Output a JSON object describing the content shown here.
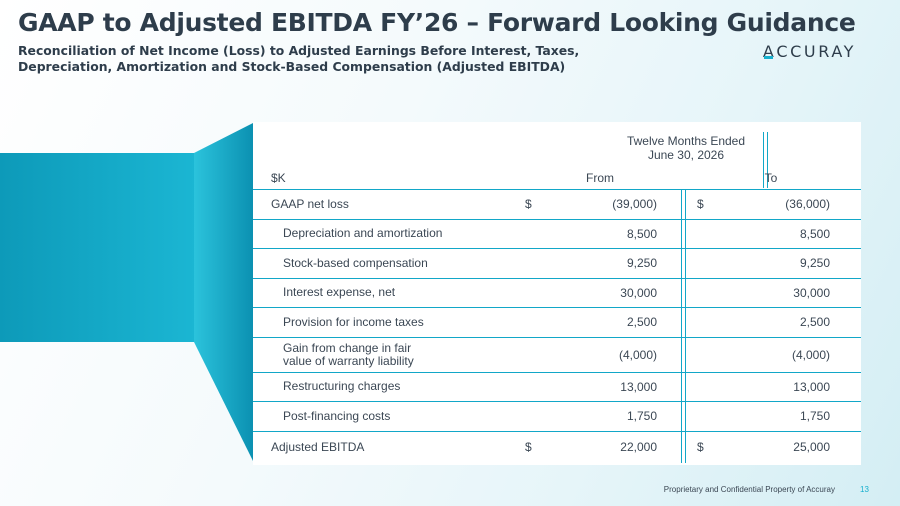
{
  "title": "GAAP to Adjusted EBITDA FY’26 – Forward Looking Guidance",
  "subtitle_line1": "Reconciliation of Net Income (Loss) to Adjusted Earnings Before Interest, Taxes,",
  "subtitle_line2": "Depreciation, Amortization and Stock-Based Compensation (Adjusted EBITDA)",
  "logo": {
    "first_letter": "A",
    "rest": "CCURAY"
  },
  "colors": {
    "accent": "#17b0ce",
    "text": "#2e3d4b"
  },
  "table": {
    "header": {
      "period_line1": "Twelve Months Ended",
      "period_line2": "June 30, 2026",
      "unit_label": "$K",
      "col_from": "From",
      "col_to": "To"
    },
    "rows": [
      {
        "label": "GAAP net loss",
        "cur_from": "$",
        "from": "(39,000)",
        "cur_to": "$",
        "to": "(36,000)"
      },
      {
        "label": "Depreciation and amortization",
        "from": "8,500",
        "to": "8,500"
      },
      {
        "label": "Stock-based compensation",
        "from": "9,250",
        "to": "9,250"
      },
      {
        "label": "Interest expense, net",
        "from": "30,000",
        "to": "30,000"
      },
      {
        "label": "Provision for income taxes",
        "from": "2,500",
        "to": "2,500"
      },
      {
        "label_line1": "Gain from change in fair",
        "label_line2": "value of warranty liability",
        "from": "(4,000)",
        "to": "(4,000)"
      },
      {
        "label": "Restructuring charges",
        "from": "13,000",
        "to": "13,000"
      },
      {
        "label": "Post-financing costs",
        "from": "1,750",
        "to": "1,750"
      },
      {
        "label": "Adjusted EBITDA",
        "cur_from": "$",
        "from": "22,000",
        "cur_to": "$",
        "to": "25,000"
      }
    ]
  },
  "footer": {
    "text": "Proprietary and Confidential Property of Accuray",
    "page": "13"
  }
}
